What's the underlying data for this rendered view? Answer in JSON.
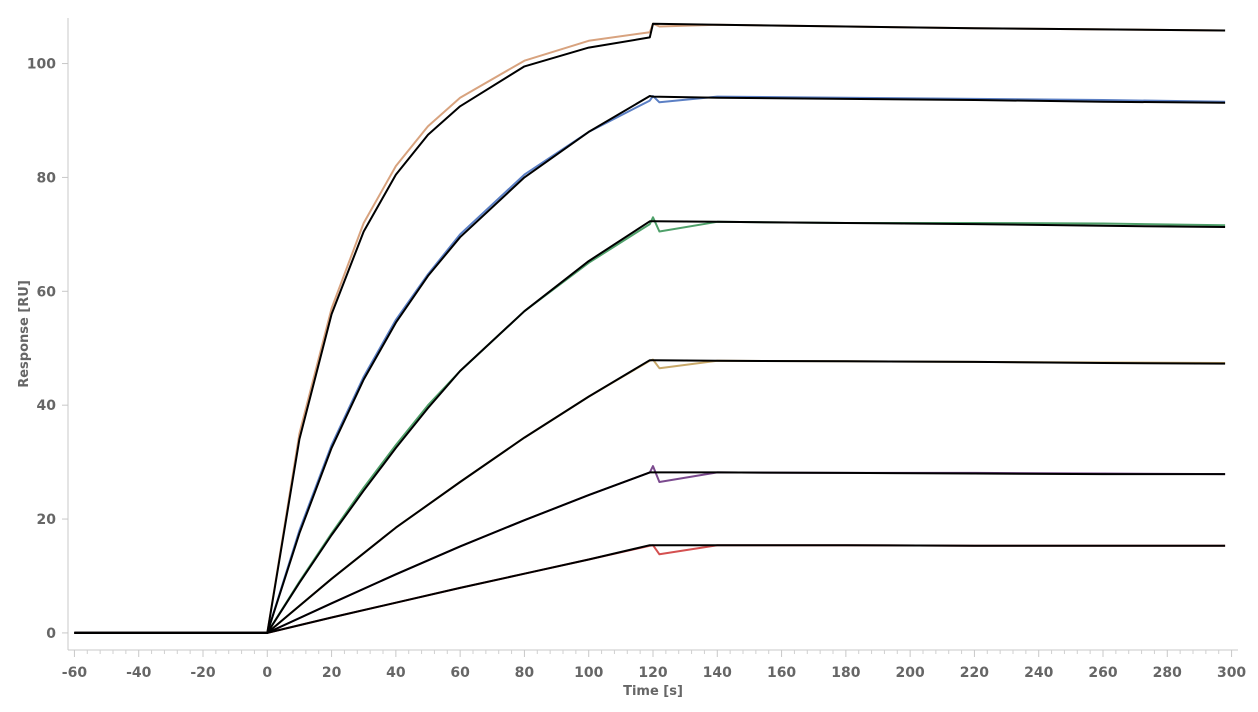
{
  "chart_data": {
    "type": "line",
    "title": "",
    "xlabel": "Time [s]",
    "ylabel": "Response [RU]",
    "xlim": [
      -62,
      302
    ],
    "ylim": [
      -3,
      108
    ],
    "x_ticks": [
      -60,
      -40,
      -20,
      0,
      20,
      40,
      60,
      80,
      100,
      120,
      140,
      160,
      180,
      200,
      220,
      240,
      260,
      280,
      300
    ],
    "y_ticks": [
      0,
      20,
      40,
      60,
      80,
      100
    ],
    "x_tick_labels": [
      "-60",
      "-40",
      "-20",
      "0",
      "20",
      "40",
      "60",
      "80",
      "100",
      "120",
      "140",
      "160",
      "180",
      "200",
      "220",
      "240",
      "260",
      "280",
      "300"
    ],
    "y_tick_labels": [
      "0",
      "20",
      "40",
      "60",
      "80",
      "100"
    ],
    "grid": false,
    "legend": "none",
    "fit_color": "#000000",
    "series": [
      {
        "color": "#d8a37f",
        "x": [
          -60,
          -30,
          0,
          10,
          20,
          30,
          40,
          50,
          60,
          80,
          100,
          119,
          120,
          122,
          140,
          180,
          220,
          260,
          298
        ],
        "values": [
          0,
          0,
          0,
          35,
          57,
          72,
          82,
          89,
          94,
          100.5,
          104,
          105.5,
          107,
          106.5,
          106.8,
          106.5,
          106.2,
          106,
          105.8
        ]
      },
      {
        "color": "#5b7fc4",
        "x": [
          -60,
          -30,
          0,
          10,
          20,
          30,
          40,
          50,
          60,
          80,
          100,
          119,
          120,
          122,
          140,
          180,
          220,
          260,
          298
        ],
        "values": [
          0,
          0,
          0,
          18,
          33,
          45,
          55,
          63,
          70,
          80.5,
          88,
          93.5,
          94.3,
          93.2,
          94.2,
          94.0,
          93.8,
          93.6,
          93.3
        ]
      },
      {
        "color": "#4fa06a",
        "x": [
          -60,
          -30,
          0,
          10,
          20,
          30,
          40,
          50,
          60,
          80,
          100,
          119,
          120,
          122,
          140,
          180,
          220,
          260,
          298
        ],
        "values": [
          0,
          0,
          0,
          9,
          17.5,
          25.5,
          33,
          40,
          46,
          56.5,
          65,
          71.8,
          73,
          70.5,
          72.2,
          72.0,
          72.0,
          71.9,
          71.6
        ]
      },
      {
        "color": "#c9a96a",
        "x": [
          -60,
          -30,
          0,
          20,
          40,
          60,
          80,
          100,
          119,
          120,
          122,
          140,
          180,
          220,
          260,
          298
        ],
        "values": [
          0,
          0,
          0,
          9.5,
          18.5,
          26.5,
          34.3,
          41.5,
          47.8,
          48,
          46.5,
          47.8,
          47.7,
          47.6,
          47.5,
          47.4
        ]
      },
      {
        "color": "#7b4a8e",
        "x": [
          -60,
          -30,
          0,
          20,
          40,
          60,
          80,
          100,
          119,
          120,
          122,
          140,
          180,
          220,
          260,
          298
        ],
        "values": [
          0,
          0,
          0,
          5.2,
          10.3,
          15.2,
          19.8,
          24.2,
          28.2,
          29.3,
          26.5,
          28.2,
          28.1,
          28.1,
          28.0,
          27.9
        ]
      },
      {
        "color": "#d45050",
        "x": [
          -60,
          -30,
          0,
          20,
          40,
          60,
          80,
          100,
          119,
          120,
          122,
          140,
          180,
          220,
          260,
          298
        ],
        "values": [
          0,
          0,
          0,
          2.7,
          5.3,
          7.9,
          10.4,
          12.9,
          15.3,
          15.4,
          13.8,
          15.4,
          15.4,
          15.3,
          15.3,
          15.3
        ]
      }
    ],
    "fits": [
      {
        "x": [
          -60,
          -30,
          0,
          10,
          20,
          30,
          40,
          50,
          60,
          80,
          100,
          119,
          120,
          140,
          180,
          220,
          260,
          298
        ],
        "values": [
          0,
          0,
          0,
          34,
          56,
          70.5,
          80.5,
          87.5,
          92.5,
          99.5,
          102.8,
          104.6,
          107,
          106.8,
          106.5,
          106.2,
          106,
          105.8
        ]
      },
      {
        "x": [
          -60,
          -30,
          0,
          10,
          20,
          30,
          40,
          50,
          60,
          80,
          100,
          119,
          120,
          140,
          180,
          220,
          260,
          298
        ],
        "values": [
          0,
          0,
          0,
          17.5,
          32.5,
          44.5,
          54.5,
          62.7,
          69.5,
          80,
          88,
          94.3,
          94.2,
          94.0,
          93.8,
          93.6,
          93.3,
          93.1
        ]
      },
      {
        "x": [
          -60,
          -30,
          0,
          10,
          20,
          30,
          40,
          50,
          60,
          80,
          100,
          119,
          120,
          140,
          180,
          220,
          260,
          298
        ],
        "values": [
          0,
          0,
          0,
          8.8,
          17.2,
          25,
          32.5,
          39.5,
          46,
          56.5,
          65.3,
          72.3,
          72.3,
          72.2,
          72.0,
          71.8,
          71.5,
          71.3
        ]
      },
      {
        "x": [
          -60,
          -30,
          0,
          20,
          40,
          60,
          80,
          100,
          119,
          120,
          140,
          180,
          220,
          260,
          298
        ],
        "values": [
          0,
          0,
          0,
          9.5,
          18.5,
          26.5,
          34.3,
          41.5,
          47.9,
          47.9,
          47.8,
          47.7,
          47.6,
          47.4,
          47.3
        ]
      },
      {
        "x": [
          -60,
          -30,
          0,
          20,
          40,
          60,
          80,
          100,
          119,
          120,
          140,
          180,
          220,
          260,
          298
        ],
        "values": [
          0,
          0,
          0,
          5.2,
          10.3,
          15.2,
          19.8,
          24.2,
          28.2,
          28.2,
          28.2,
          28.1,
          28.0,
          27.9,
          27.9
        ]
      },
      {
        "x": [
          -60,
          -30,
          0,
          20,
          40,
          60,
          80,
          100,
          119,
          120,
          140,
          180,
          220,
          260,
          298
        ],
        "values": [
          0,
          0,
          0,
          2.7,
          5.3,
          7.9,
          10.4,
          12.9,
          15.4,
          15.4,
          15.4,
          15.4,
          15.3,
          15.3,
          15.3
        ]
      }
    ]
  }
}
